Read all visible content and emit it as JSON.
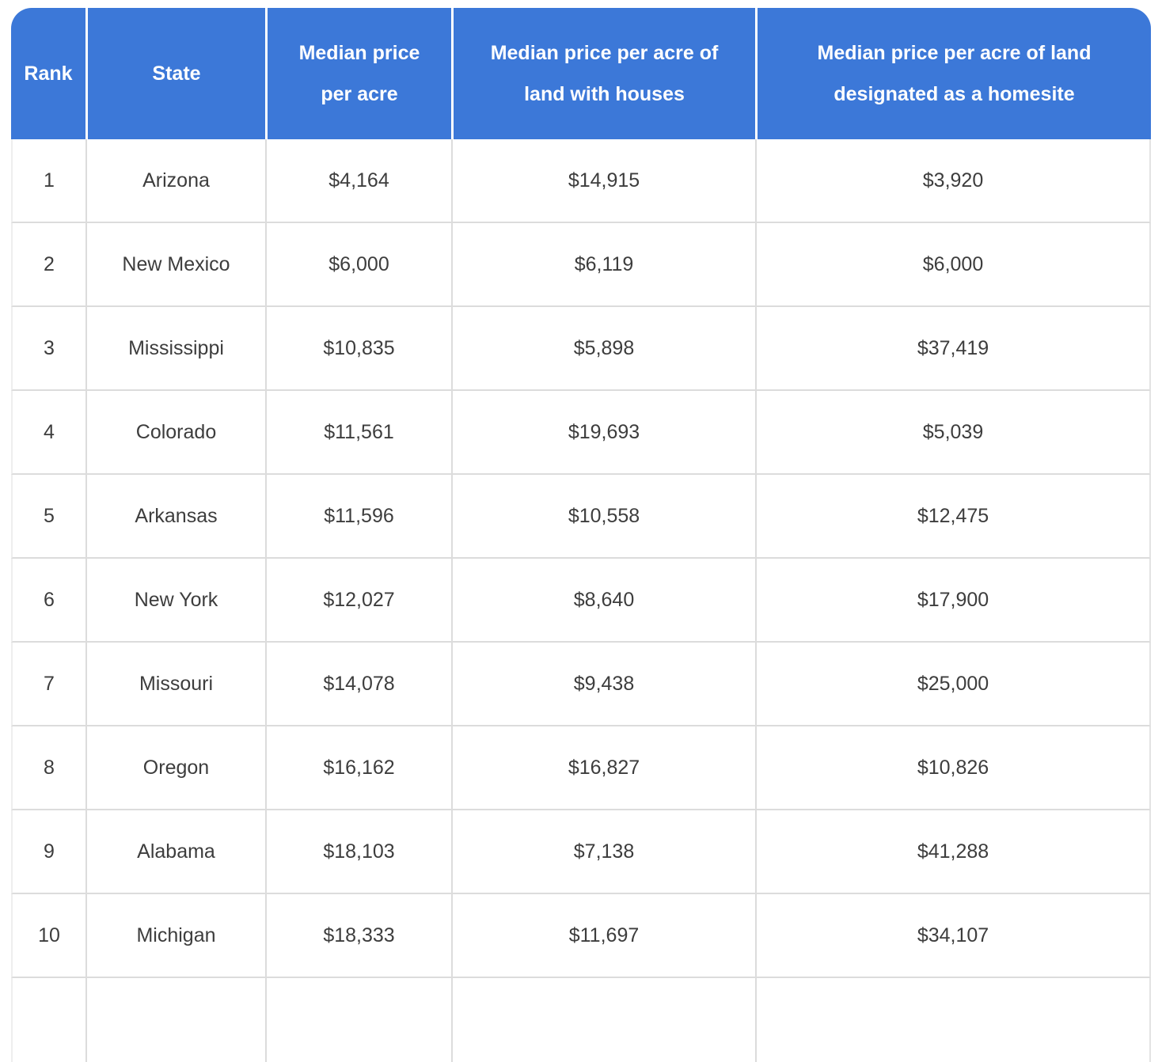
{
  "chart_data": {
    "type": "table",
    "columns": [
      "Rank",
      "State",
      "Median price per acre",
      "Median price per acre of land with houses",
      "Median price per acre of land designated as a homesite"
    ],
    "rows": [
      [
        "1",
        "Arizona",
        "$4,164",
        "$14,915",
        "$3,920"
      ],
      [
        "2",
        "New Mexico",
        "$6,000",
        "$6,119",
        "$6,000"
      ],
      [
        "3",
        "Mississippi",
        "$10,835",
        "$5,898",
        "$37,419"
      ],
      [
        "4",
        "Colorado",
        "$11,561",
        "$19,693",
        "$5,039"
      ],
      [
        "5",
        "Arkansas",
        "$11,596",
        "$10,558",
        "$12,475"
      ],
      [
        "6",
        "New York",
        "$12,027",
        "$8,640",
        "$17,900"
      ],
      [
        "7",
        "Missouri",
        "$14,078",
        "$9,438",
        "$25,000"
      ],
      [
        "8",
        "Oregon",
        "$16,162",
        "$16,827",
        "$10,826"
      ],
      [
        "9",
        "Alabama",
        "$18,103",
        "$7,138",
        "$41,288"
      ],
      [
        "10",
        "Michigan",
        "$18,333",
        "$11,697",
        "$34,107"
      ]
    ]
  },
  "header": {
    "cols": [
      {
        "lines": [
          "Rank"
        ]
      },
      {
        "lines": [
          "State"
        ]
      },
      {
        "lines": [
          "Median price",
          "per acre"
        ]
      },
      {
        "lines": [
          "Median price per acre of",
          "land with houses"
        ]
      },
      {
        "lines": [
          "Median price per acre of land",
          "designated as a homesite"
        ]
      }
    ]
  },
  "colors": {
    "header_bg": "#3c78d8",
    "header_text": "#ffffff",
    "cell_text": "#3d3d3d",
    "inner_border": "#dcdcdc"
  }
}
